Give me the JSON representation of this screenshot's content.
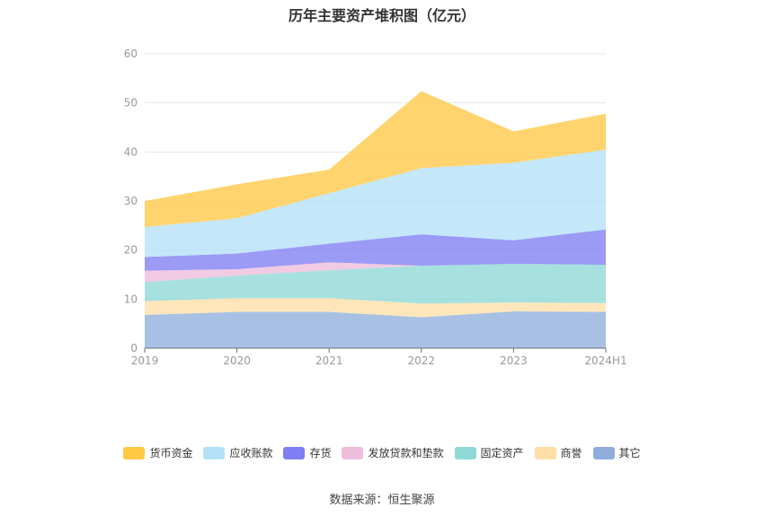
{
  "title": "历年主要资产堆积图（亿元）",
  "source": "数据来源：恒生聚源",
  "chart_data": {
    "type": "area",
    "stacked": true,
    "categories": [
      "2019",
      "2020",
      "2021",
      "2022",
      "2023",
      "2024H1"
    ],
    "ylim": [
      0,
      60
    ],
    "yticks": [
      0,
      10,
      20,
      30,
      40,
      50,
      60
    ],
    "grid": true,
    "legend_position": "bottom",
    "series": [
      {
        "name": "其它",
        "color": "#8FAEDC",
        "values": [
          6.8,
          7.4,
          7.4,
          6.3,
          7.5,
          7.4
        ]
      },
      {
        "name": "商誉",
        "color": "#FFDFA6",
        "values": [
          2.8,
          2.8,
          2.8,
          2.8,
          1.8,
          1.8
        ]
      },
      {
        "name": "固定资产",
        "color": "#8ED9D6",
        "values": [
          3.9,
          4.6,
          5.7,
          7.7,
          7.9,
          7.8
        ]
      },
      {
        "name": "发放贷款和垫款",
        "color": "#EDBDDB",
        "values": [
          2.3,
          1.3,
          1.6,
          0,
          0,
          0
        ]
      },
      {
        "name": "存货",
        "color": "#7F7EF2",
        "values": [
          2.8,
          3.2,
          3.8,
          6.4,
          4.8,
          7.2
        ]
      },
      {
        "name": "应收账款",
        "color": "#B4E0F8",
        "values": [
          6.1,
          7.2,
          10.3,
          13.5,
          15.8,
          16.3
        ]
      },
      {
        "name": "货币资金",
        "color": "#FFC845",
        "values": [
          5.3,
          6.9,
          4.8,
          15.7,
          6.4,
          7.3
        ]
      }
    ]
  },
  "legend_order": [
    "货币资金",
    "应收账款",
    "存货",
    "发放贷款和垫款",
    "固定资产",
    "商誉",
    "其它"
  ]
}
